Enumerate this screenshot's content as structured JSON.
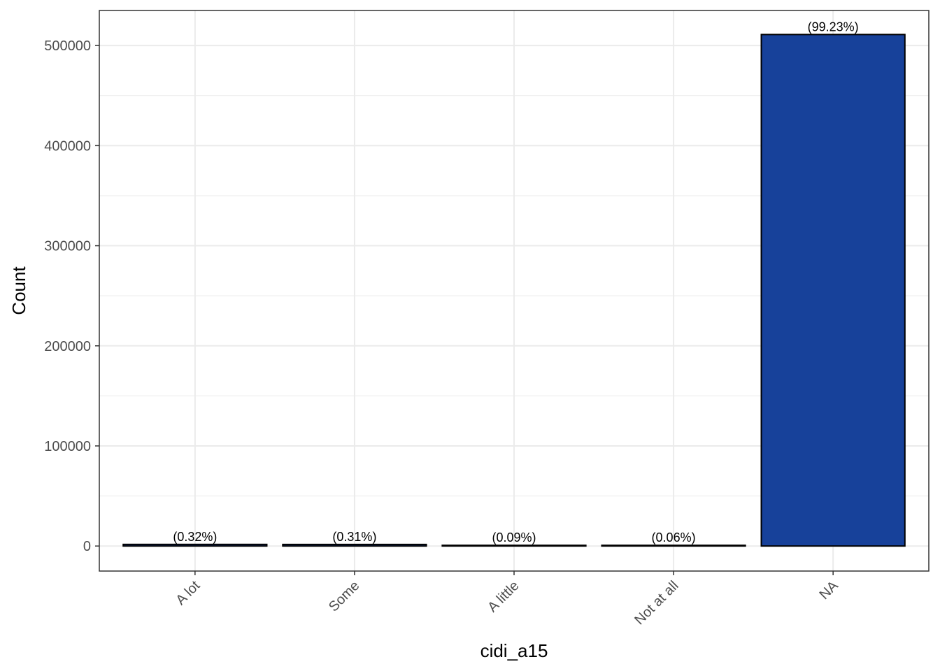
{
  "chart_data": {
    "type": "bar",
    "categories": [
      "A lot",
      "Some",
      "A little",
      "Not at all",
      "NA"
    ],
    "values": [
      1650,
      1600,
      460,
      310,
      511000
    ],
    "labels": [
      "(0.32%)",
      "(0.31%)",
      "(0.09%)",
      "(0.06%)",
      "(99.23%)"
    ],
    "xlabel": "cidi_a15",
    "ylabel": "Count",
    "ylim": [
      -25000,
      535000
    ],
    "yticks": [
      0,
      100000,
      200000,
      300000,
      400000,
      500000
    ],
    "ytick_labels": [
      "0",
      "100000",
      "200000",
      "300000",
      "400000",
      "500000"
    ],
    "grid": true,
    "colors": {
      "bar_fill": "#17419a",
      "bar_stroke": "#000000",
      "grid": "#ebebeb",
      "panel_border": "#333333"
    }
  }
}
